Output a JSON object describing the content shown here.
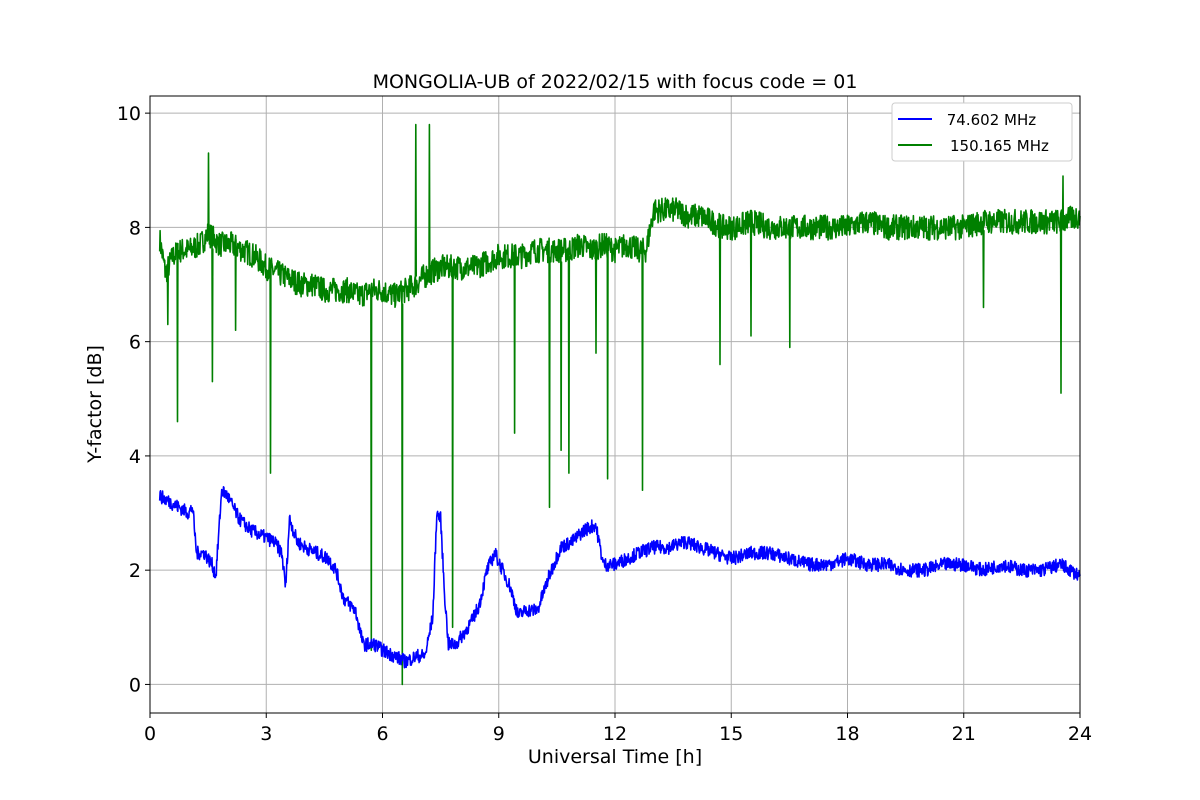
{
  "chart_data": {
    "type": "line",
    "title": "MONGOLIA-UB of 2022/02/15 with focus code = 01",
    "xlabel": "Universal Time [h]",
    "ylabel": "Y-factor [dB]",
    "xlim": [
      0,
      24
    ],
    "ylim": [
      -0.5,
      10.3
    ],
    "xticks": [
      0,
      3,
      6,
      9,
      12,
      15,
      18,
      21,
      24
    ],
    "xtick_labels": [
      "0",
      "3",
      "6",
      "9",
      "12",
      "15",
      "18",
      "21",
      "24"
    ],
    "yticks": [
      0,
      2,
      4,
      6,
      8,
      10
    ],
    "ytick_labels": [
      "0",
      "2",
      "4",
      "6",
      "8",
      "10"
    ],
    "grid": true,
    "legend_position": "top-right",
    "series": [
      {
        "name": " 74.602 MHz",
        "color": "#0000ff",
        "x": [
          0.25,
          0.5,
          0.75,
          1.0,
          1.1,
          1.2,
          1.4,
          1.6,
          1.7,
          1.85,
          2.0,
          2.3,
          2.6,
          2.9,
          3.2,
          3.4,
          3.5,
          3.6,
          3.8,
          4.0,
          4.3,
          4.6,
          4.8,
          5.0,
          5.3,
          5.5,
          5.8,
          6.0,
          6.3,
          6.6,
          6.9,
          7.1,
          7.3,
          7.4,
          7.5,
          7.6,
          7.7,
          7.9,
          8.1,
          8.3,
          8.5,
          8.7,
          8.9,
          9.1,
          9.3,
          9.5,
          9.7,
          10.0,
          10.3,
          10.6,
          10.9,
          11.2,
          11.5,
          11.7,
          12.0,
          12.3,
          12.6,
          13.0,
          13.4,
          13.8,
          14.2,
          14.6,
          15.0,
          15.5,
          16.0,
          16.5,
          17.0,
          17.5,
          18.0,
          18.5,
          19.0,
          19.5,
          20.0,
          20.5,
          21.0,
          21.5,
          22.0,
          22.5,
          23.0,
          23.5,
          24.0
        ],
        "values": [
          3.3,
          3.2,
          3.1,
          3.0,
          3.1,
          2.3,
          2.3,
          2.1,
          1.9,
          3.4,
          3.3,
          2.9,
          2.7,
          2.6,
          2.5,
          2.3,
          1.7,
          2.9,
          2.5,
          2.4,
          2.3,
          2.2,
          2.0,
          1.5,
          1.3,
          0.7,
          0.7,
          0.6,
          0.5,
          0.4,
          0.5,
          0.5,
          1.2,
          3.0,
          2.9,
          1.6,
          0.7,
          0.7,
          0.9,
          1.1,
          1.4,
          2.0,
          2.3,
          2.0,
          1.7,
          1.2,
          1.3,
          1.3,
          1.9,
          2.4,
          2.5,
          2.7,
          2.8,
          2.1,
          2.1,
          2.2,
          2.3,
          2.4,
          2.4,
          2.5,
          2.4,
          2.3,
          2.2,
          2.3,
          2.3,
          2.2,
          2.1,
          2.1,
          2.2,
          2.1,
          2.1,
          2.0,
          2.0,
          2.1,
          2.1,
          2.0,
          2.1,
          2.0,
          2.0,
          2.1,
          1.9
        ]
      },
      {
        "name": "150.165 MHz",
        "color": "#008000",
        "x": [
          0.25,
          0.4,
          0.6,
          0.8,
          1.0,
          1.3,
          1.5,
          1.8,
          2.1,
          2.4,
          2.7,
          3.0,
          3.3,
          3.6,
          3.9,
          4.2,
          4.5,
          4.8,
          5.1,
          5.4,
          5.7,
          6.0,
          6.3,
          6.6,
          6.85,
          7.0,
          7.2,
          7.5,
          7.8,
          8.1,
          8.4,
          8.7,
          9.0,
          9.3,
          9.6,
          9.9,
          10.2,
          10.5,
          10.8,
          11.1,
          11.4,
          11.7,
          12.0,
          12.3,
          12.6,
          12.8,
          13.0,
          13.3,
          13.6,
          13.9,
          14.2,
          14.5,
          14.8,
          15.1,
          15.5,
          16.0,
          16.5,
          17.0,
          17.5,
          18.0,
          18.5,
          19.0,
          19.5,
          20.0,
          20.5,
          21.0,
          21.5,
          22.0,
          22.5,
          23.0,
          23.5,
          24.0
        ],
        "values": [
          7.8,
          7.2,
          7.5,
          7.6,
          7.6,
          7.7,
          7.9,
          7.7,
          7.7,
          7.6,
          7.5,
          7.3,
          7.2,
          7.1,
          7.0,
          7.0,
          6.9,
          6.9,
          6.9,
          6.8,
          6.9,
          6.9,
          6.8,
          6.9,
          7.0,
          7.1,
          7.2,
          7.3,
          7.3,
          7.3,
          7.3,
          7.4,
          7.5,
          7.5,
          7.5,
          7.6,
          7.6,
          7.6,
          7.6,
          7.7,
          7.6,
          7.7,
          7.6,
          7.7,
          7.6,
          7.6,
          8.3,
          8.3,
          8.3,
          8.2,
          8.2,
          8.1,
          8.0,
          8.0,
          8.1,
          8.0,
          8.0,
          8.0,
          8.0,
          8.0,
          8.1,
          8.0,
          8.0,
          8.0,
          8.0,
          8.0,
          8.1,
          8.1,
          8.1,
          8.1,
          8.1,
          8.2
        ]
      }
    ],
    "spikes": [
      {
        "series": 1,
        "x": 0.45,
        "y": 6.3
      },
      {
        "series": 1,
        "x": 0.7,
        "y": 4.6
      },
      {
        "series": 1,
        "x": 1.5,
        "y": 9.3
      },
      {
        "series": 1,
        "x": 1.6,
        "y": 5.3
      },
      {
        "series": 1,
        "x": 2.2,
        "y": 6.2
      },
      {
        "series": 1,
        "x": 3.1,
        "y": 3.7
      },
      {
        "series": 1,
        "x": 5.7,
        "y": 0.6
      },
      {
        "series": 1,
        "x": 6.5,
        "y": 0.0
      },
      {
        "series": 1,
        "x": 6.85,
        "y": 9.8
      },
      {
        "series": 1,
        "x": 7.2,
        "y": 9.8
      },
      {
        "series": 1,
        "x": 7.8,
        "y": 1.0
      },
      {
        "series": 1,
        "x": 9.4,
        "y": 4.4
      },
      {
        "series": 1,
        "x": 10.3,
        "y": 3.1
      },
      {
        "series": 1,
        "x": 10.6,
        "y": 4.1
      },
      {
        "series": 1,
        "x": 10.8,
        "y": 3.7
      },
      {
        "series": 1,
        "x": 11.5,
        "y": 5.8
      },
      {
        "series": 1,
        "x": 11.8,
        "y": 3.6
      },
      {
        "series": 1,
        "x": 12.7,
        "y": 3.4
      },
      {
        "series": 1,
        "x": 14.7,
        "y": 5.6
      },
      {
        "series": 1,
        "x": 15.5,
        "y": 6.1
      },
      {
        "series": 1,
        "x": 16.5,
        "y": 5.9
      },
      {
        "series": 1,
        "x": 21.5,
        "y": 6.6
      },
      {
        "series": 1,
        "x": 23.5,
        "y": 5.1
      },
      {
        "series": 1,
        "x": 23.55,
        "y": 8.9
      }
    ]
  }
}
